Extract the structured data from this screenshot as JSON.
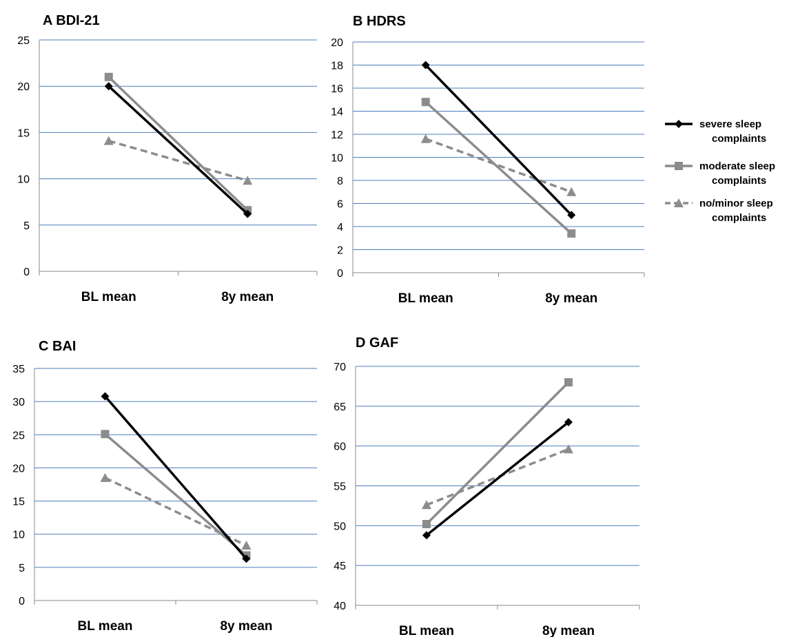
{
  "chart_data": [
    {
      "type": "line",
      "title": "A  BDI-21",
      "categories": [
        "BL mean",
        "8y mean"
      ],
      "ylim": [
        0,
        25
      ],
      "yticks": [
        0,
        5,
        10,
        15,
        20,
        25
      ],
      "grid": true,
      "series": [
        {
          "name": "severe sleep complaints",
          "values": [
            20,
            6.2
          ]
        },
        {
          "name": "moderate sleep complaints",
          "values": [
            21,
            6.6
          ]
        },
        {
          "name": "no/minor sleep complaints",
          "values": [
            14.1,
            9.8
          ]
        }
      ]
    },
    {
      "type": "line",
      "title": "B  HDRS",
      "categories": [
        "BL mean",
        "8y mean"
      ],
      "ylim": [
        0,
        20
      ],
      "yticks": [
        0,
        2,
        4,
        6,
        8,
        10,
        12,
        14,
        16,
        18,
        20
      ],
      "grid": true,
      "series": [
        {
          "name": "severe sleep complaints",
          "values": [
            18,
            5
          ]
        },
        {
          "name": "moderate sleep complaints",
          "values": [
            14.8,
            3.4
          ]
        },
        {
          "name": "no/minor sleep complaints",
          "values": [
            11.6,
            7
          ]
        }
      ]
    },
    {
      "type": "line",
      "title": "C  BAI",
      "categories": [
        "BL mean",
        "8y mean"
      ],
      "ylim": [
        0,
        35
      ],
      "yticks": [
        0,
        5,
        10,
        15,
        20,
        25,
        30,
        35
      ],
      "grid": true,
      "series": [
        {
          "name": "severe sleep complaints",
          "values": [
            30.8,
            6.3
          ]
        },
        {
          "name": "moderate sleep complaints",
          "values": [
            25.1,
            6.8
          ]
        },
        {
          "name": "no/minor sleep complaints",
          "values": [
            18.5,
            8.3
          ]
        }
      ]
    },
    {
      "type": "line",
      "title": "D  GAF",
      "categories": [
        "BL mean",
        "8y mean"
      ],
      "ylim": [
        40,
        70
      ],
      "yticks": [
        40,
        45,
        50,
        55,
        60,
        65,
        70
      ],
      "grid": true,
      "series": [
        {
          "name": "severe sleep complaints",
          "values": [
            48.8,
            63
          ]
        },
        {
          "name": "moderate sleep complaints",
          "values": [
            50.2,
            68
          ]
        },
        {
          "name": "no/minor sleep complaints",
          "values": [
            52.6,
            59.6
          ]
        }
      ]
    }
  ],
  "legend": {
    "position": "right",
    "items": [
      {
        "line1": "severe sleep",
        "line2": "complaints",
        "marker": "diamond",
        "color": "#000000",
        "dashed": false
      },
      {
        "line1": "moderate sleep",
        "line2": "complaints",
        "marker": "square",
        "color": "#8c8c8c",
        "dashed": false
      },
      {
        "line1": "no/minor sleep",
        "line2": "complaints",
        "marker": "triangle",
        "color": "#8c8c8c",
        "dashed": true
      }
    ]
  },
  "styles": {
    "grid_color": "#4a7ebb",
    "axis_color": "#888888",
    "series_colors": [
      "#000000",
      "#8c8c8c",
      "#8c8c8c"
    ],
    "series_markers": [
      "diamond",
      "square",
      "triangle"
    ],
    "series_dashed": [
      false,
      false,
      true
    ]
  }
}
